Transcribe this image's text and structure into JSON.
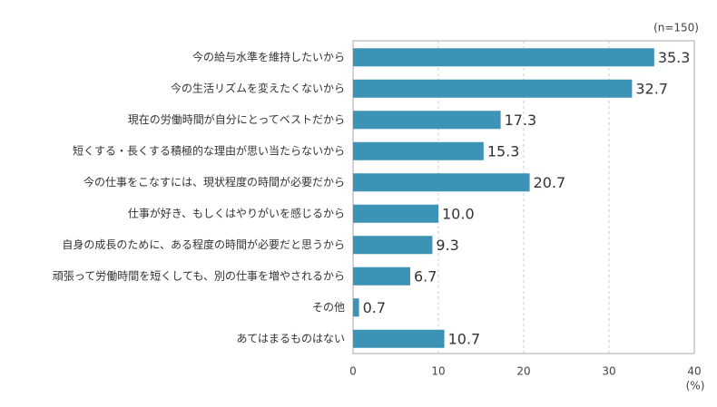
{
  "chart_data": {
    "type": "barh",
    "note": "(n=150)",
    "xlabel": "(%)",
    "categories": [
      "今の給与水準を維持したいから",
      "今の生活リズムを変えたくないから",
      "現在の労働時間が自分にとってベストだから",
      "短くする・長くする積極的な理由が思い当たらないから",
      "今の仕事をこなすには、現状程度の時間が必要だから",
      "仕事が好き、もしくはやりがいを感じるから",
      "自身の成長のために、ある程度の時間が必要だと思うから",
      "頑張って労働時間を短くしても、別の仕事を増やされるから",
      "その他",
      "あてはまるものはない"
    ],
    "values": [
      35.3,
      32.7,
      17.3,
      15.3,
      20.7,
      10,
      9.3,
      6.7,
      0.7,
      10.7
    ],
    "value_labels": [
      "35.3",
      "32.7",
      "17.3",
      "15.3",
      "20.7",
      "10.0",
      "9.3",
      "6.7",
      "0.7",
      "10.7"
    ],
    "color": "#3c93b6",
    "xlim": [
      0,
      40
    ],
    "xticks": [
      0,
      10,
      20,
      30,
      40
    ],
    "grid": true
  }
}
